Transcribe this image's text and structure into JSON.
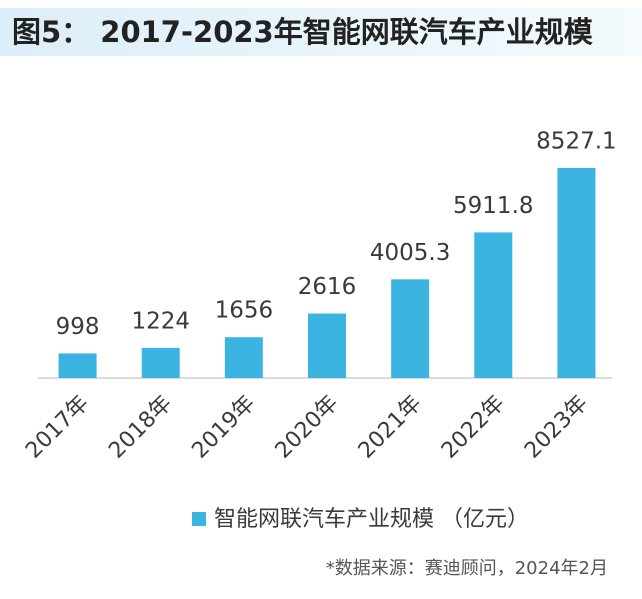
{
  "chart_data": {
    "type": "bar",
    "title": "图5： 2017-2023年智能网联汽车产业规模",
    "categories": [
      "2017年",
      "2018年",
      "2019年",
      "2020年",
      "2021年",
      "2022年",
      "2023年"
    ],
    "series": [
      {
        "name": "智能网联汽车产业规模 （亿元）",
        "color": "#3cb4e1",
        "values": [
          998,
          1224,
          1656,
          2616,
          4005.3,
          5911.8,
          8527.1
        ]
      }
    ],
    "source": "*数据来源：赛迪顾问，2024年2月"
  }
}
